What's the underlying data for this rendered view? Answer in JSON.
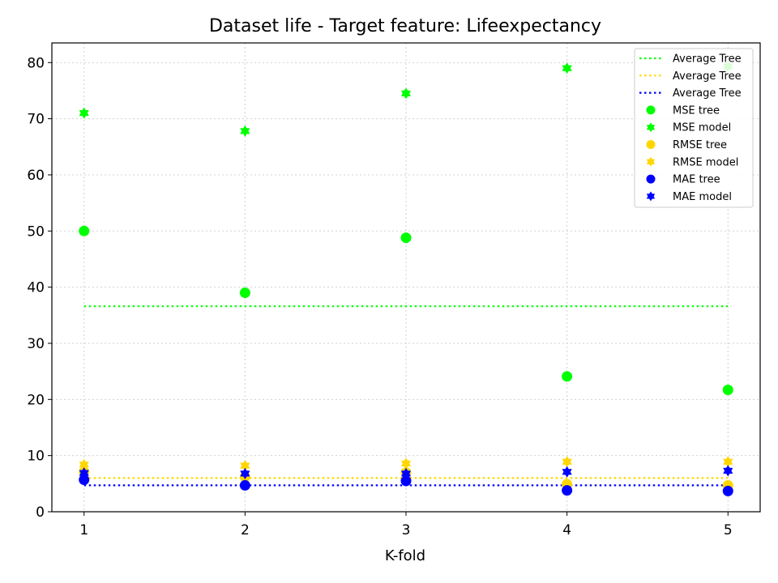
{
  "chart_data": {
    "type": "scatter",
    "title": "Dataset life - Target feature: Lifeexpectancy",
    "xlabel": "K-fold",
    "ylabel": "",
    "x": [
      1,
      2,
      3,
      4,
      5
    ],
    "xticks": [
      "1",
      "2",
      "3",
      "4",
      "5"
    ],
    "xlim": [
      0.8,
      5.2
    ],
    "ylim": [
      0,
      83.5
    ],
    "yticks": [
      "0",
      "10",
      "20",
      "30",
      "40",
      "50",
      "60",
      "70",
      "80"
    ],
    "grid": true,
    "legend_position": "top-right",
    "averages": [
      {
        "name": "Average Tree",
        "value": 36.6,
        "color": "#00ff00"
      },
      {
        "name": "Average Tree",
        "value": 6.0,
        "color": "#ffd700"
      },
      {
        "name": "Average Tree",
        "value": 4.7,
        "color": "#0000ff"
      }
    ],
    "series": [
      {
        "name": "MSE tree",
        "marker": "circle",
        "color": "#00ff00",
        "values": [
          50.0,
          39.0,
          48.8,
          24.1,
          21.7
        ]
      },
      {
        "name": "MSE model",
        "marker": "star",
        "color": "#00ff00",
        "values": [
          71.0,
          67.8,
          74.5,
          79.0,
          79.3
        ]
      },
      {
        "name": "RMSE tree",
        "marker": "circle",
        "color": "#ffd700",
        "values": [
          7.1,
          6.2,
          7.0,
          4.9,
          4.7
        ]
      },
      {
        "name": "RMSE model",
        "marker": "star",
        "color": "#ffd700",
        "values": [
          8.4,
          8.2,
          8.6,
          8.9,
          8.9
        ]
      },
      {
        "name": "MAE tree",
        "marker": "circle",
        "color": "#0000ff",
        "values": [
          5.7,
          4.7,
          5.5,
          3.8,
          3.7
        ]
      },
      {
        "name": "MAE model",
        "marker": "star",
        "color": "#0000ff",
        "values": [
          6.9,
          6.8,
          6.8,
          7.1,
          7.3
        ]
      }
    ]
  }
}
